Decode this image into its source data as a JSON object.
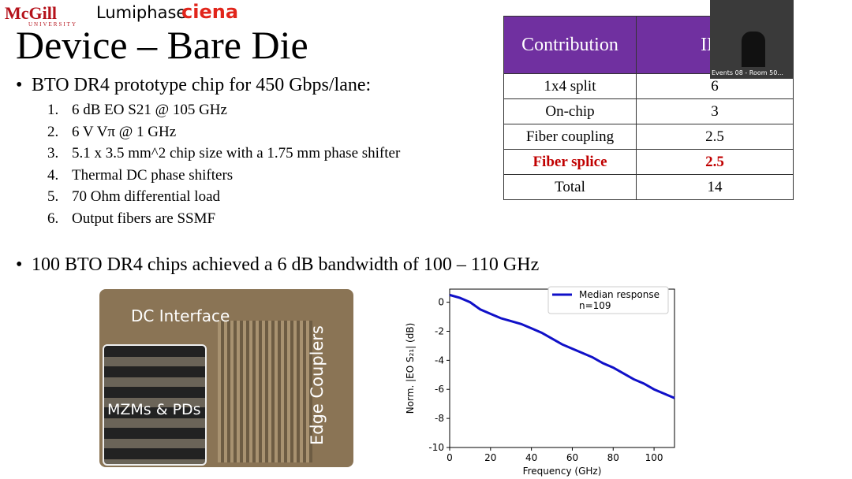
{
  "header": {
    "logo_1": "McGill",
    "logo_1_sub": "UNIVERSITY",
    "logo_2": "Lumiphase",
    "logo_3": "ciena"
  },
  "title": "Device – Bare Die",
  "bullets": [
    {
      "text": "BTO DR4 prototype chip for 450 Gbps/lane:",
      "items": [
        "6 dB EO S21 @ 105 GHz",
        "6 V Vπ @ 1 GHz",
        "5.1 x 3.5 mm^2 chip size with a 1.75 mm phase shifter",
        "Thermal DC phase shifters",
        "70 Ohm differential load",
        "Output fibers are SSMF"
      ]
    },
    {
      "text": "100 BTO DR4 chips achieved a 6 dB bandwidth of 100 – 110 GHz",
      "items": []
    }
  ],
  "table": {
    "header": [
      "Contribution",
      "IL ("
    ],
    "rows": [
      [
        "1x4 split",
        "6"
      ],
      [
        "On-chip",
        "3"
      ],
      [
        "Fiber coupling",
        "2.5"
      ],
      [
        "Fiber splice",
        "2.5"
      ],
      [
        "Total",
        "14"
      ]
    ]
  },
  "photo": {
    "labels": [
      "DC Interface",
      "MZMs & PDs",
      "Edge Couplers"
    ]
  },
  "webcam": {
    "label": "Events 08 - Room 50..."
  },
  "chart_data": {
    "type": "line",
    "xlabel": "Frequency (GHz)",
    "ylabel": "Norm. |EO S₂₁| (dB)",
    "x": [
      0,
      5,
      10,
      15,
      20,
      25,
      30,
      35,
      40,
      45,
      50,
      55,
      60,
      65,
      70,
      75,
      80,
      85,
      90,
      95,
      100,
      105,
      110
    ],
    "series": [
      {
        "name": "Median response",
        "color": "#1010c8",
        "values": [
          0.5,
          0.3,
          0,
          -0.5,
          -0.8,
          -1.1,
          -1.3,
          -1.5,
          -1.8,
          -2.1,
          -2.5,
          -2.9,
          -3.2,
          -3.5,
          -3.8,
          -4.2,
          -4.5,
          -4.9,
          -5.3,
          -5.6,
          -6.0,
          -6.3,
          -6.6
        ]
      }
    ],
    "legend_note": "n=109",
    "legend": "upper right",
    "xlim": [
      0,
      110
    ],
    "ylim": [
      -10,
      0.9
    ],
    "xticks": [
      0,
      20,
      40,
      60,
      80,
      100
    ],
    "yticks": [
      -10,
      -8,
      -6,
      -4,
      -2,
      0
    ]
  }
}
